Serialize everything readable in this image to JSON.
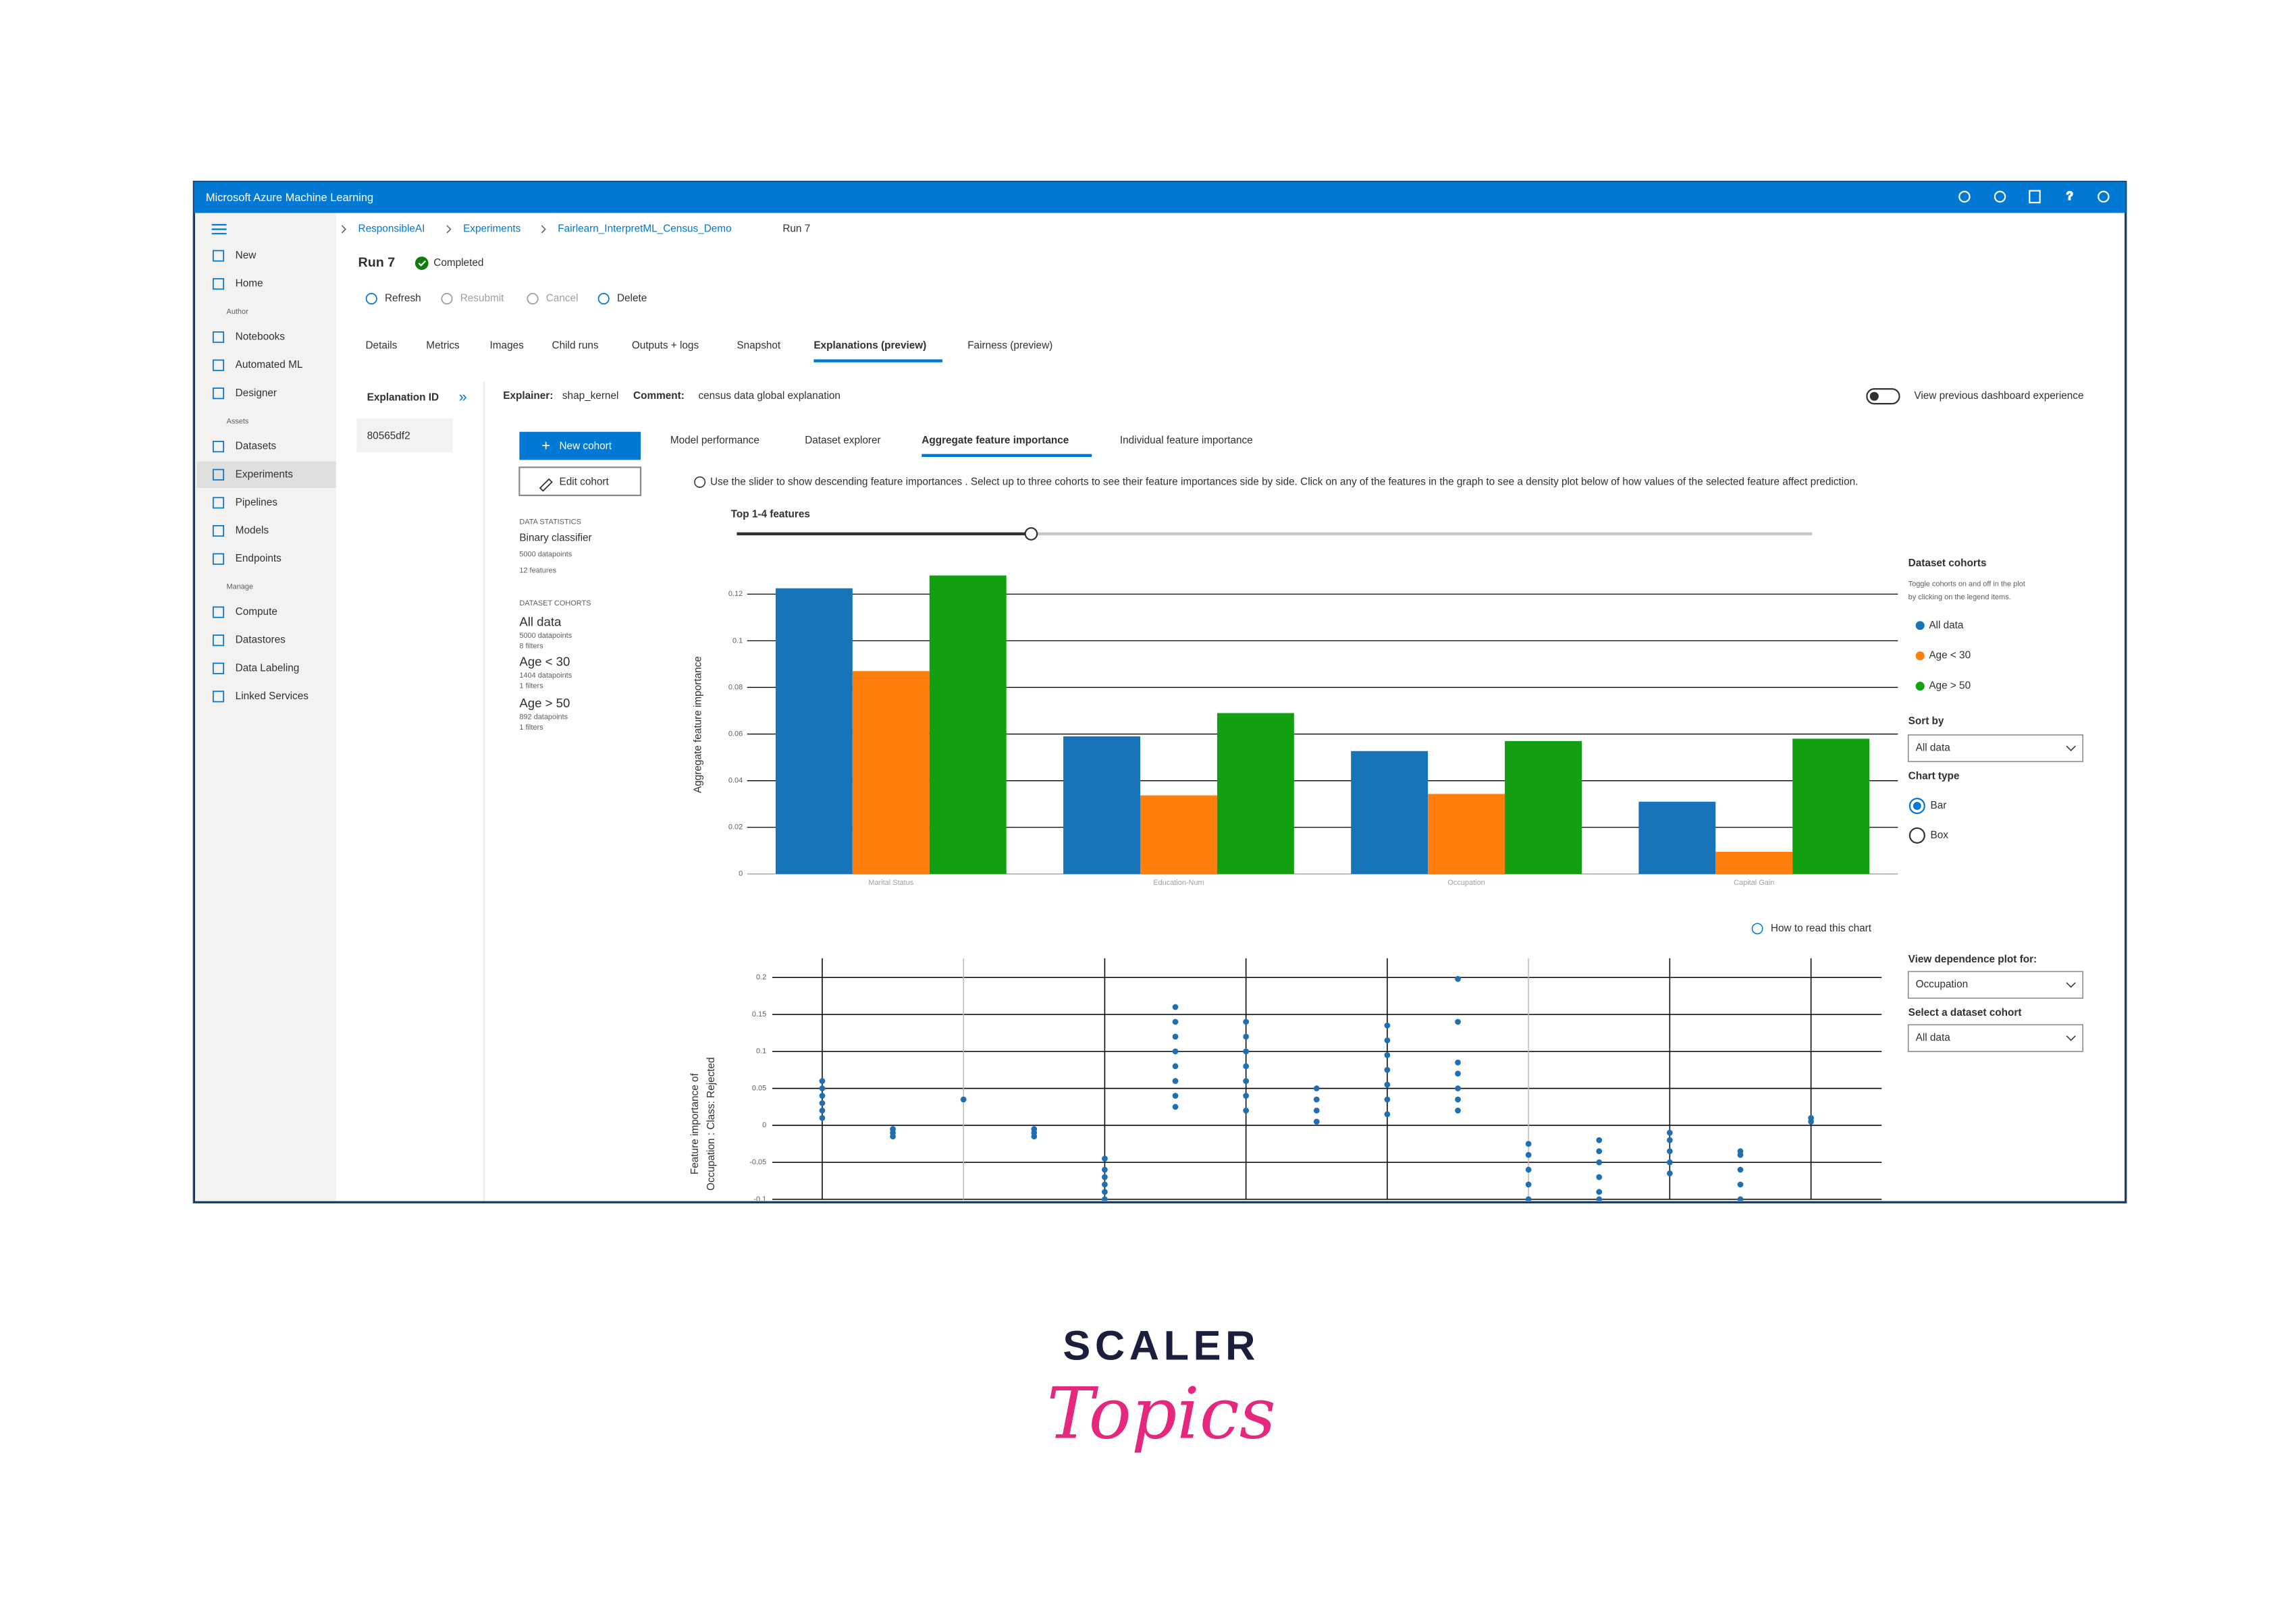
{
  "app_title": "Microsoft Azure Machine Learning",
  "sidebar": {
    "top": [
      "New",
      "Home"
    ],
    "sections": [
      {
        "label": "Author",
        "items": [
          "Notebooks",
          "Automated ML",
          "Designer"
        ]
      },
      {
        "label": "Assets",
        "items": [
          "Datasets",
          "Experiments",
          "Pipelines",
          "Models",
          "Endpoints"
        ]
      },
      {
        "label": "Manage",
        "items": [
          "Compute",
          "Datastores",
          "Data Labeling",
          "Linked Services"
        ]
      }
    ]
  },
  "breadcrumb": [
    "ResponsibleAI",
    "Experiments",
    "Fairlearn_InterpretML_Census_Demo",
    "Run 7"
  ],
  "run": {
    "title": "Run 7",
    "status": "Completed"
  },
  "toolbar": [
    "Refresh",
    "Resubmit",
    "Cancel",
    "Delete"
  ],
  "tabs": [
    "Details",
    "Metrics",
    "Images",
    "Child runs",
    "Outputs + logs",
    "Snapshot",
    "Explanations (preview)",
    "Fairness (preview)"
  ],
  "explanation": {
    "id_label": "Explanation ID",
    "id": "80565df2",
    "explainer_label": "Explainer:",
    "explainer": "shap_kernel",
    "comment_label": "Comment:",
    "comment": "census data global explanation",
    "toggle_label": "View previous dashboard experience"
  },
  "buttons": [
    "New cohort",
    "Edit cohort"
  ],
  "subtabs": [
    "Model performance",
    "Dataset explorer",
    "Aggregate feature importance",
    "Individual feature importance"
  ],
  "info": "Use the slider to show descending feature importances . Select up to three cohorts to see their feature importances side by side. Click on any of the features in the graph to see a density plot below of how values of the selected feature affect prediction.",
  "slider_label": "Top 1-4 features",
  "data_statistics": {
    "heading": "DATA STATISTICS",
    "lines": [
      "Binary classifier",
      "5000 datapoints",
      "12 features"
    ]
  },
  "dataset_cohorts": {
    "heading": "DATASET COHORTS",
    "cohorts": [
      {
        "name": "All data",
        "lines": [
          "5000 datapoints",
          "8 filters"
        ]
      },
      {
        "name": "Age < 30",
        "lines": [
          "1404 datapoints",
          "1 filters"
        ]
      },
      {
        "name": "Age > 50",
        "lines": [
          "892 datapoints",
          "1 filters"
        ]
      }
    ]
  },
  "controls": {
    "sort_by": "Sort by",
    "sort_value": "All data",
    "chart_type": "Chart type",
    "options": [
      "Bar",
      "Box"
    ],
    "how_to": "How to read this chart",
    "dependence_label": "View dependence plot for:",
    "dependence_value": "Occupation",
    "cohort_label": "Select a dataset cohort",
    "cohort_value": "All data"
  },
  "logo": {
    "line1": "SCALER",
    "line2": "Topics"
  },
  "chart_data": [
    {
      "type": "bar",
      "y_label": "Aggregate feature importance",
      "legend_title": "Dataset cohorts",
      "legend_note": [
        "Toggle cohorts on and off in the plot",
        "by clicking on the legend items."
      ],
      "categories": [
        "Marital Status",
        "Education-Num",
        "Occupation",
        "Capital Gain"
      ],
      "series": [
        {
          "name": "All data",
          "color": "#1874b8",
          "values": [
            0.1225,
            0.059,
            0.0527,
            0.031
          ]
        },
        {
          "name": "Age < 30",
          "color": "#ff7f0e",
          "values": [
            0.087,
            0.0337,
            0.0343,
            0.0095
          ]
        },
        {
          "name": "Age > 50",
          "color": "#12a012",
          "values": [
            0.128,
            0.069,
            0.057,
            0.058
          ]
        }
      ],
      "ylim": [
        0,
        0.13
      ],
      "yticks": [
        0,
        0.02,
        0.04,
        0.06,
        0.08,
        0.1,
        0.12
      ],
      "grid": true
    },
    {
      "type": "scatter",
      "y_label": [
        "Feature importance of",
        "Occupation : Class: Rejected"
      ],
      "color": "#1f6fb2",
      "x": [
        0,
        0,
        0,
        0,
        0,
        0,
        1,
        1,
        1,
        2,
        3,
        3,
        3,
        4,
        4,
        4,
        4,
        4,
        4,
        5,
        5,
        5,
        5,
        5,
        5,
        5,
        5,
        6,
        6,
        6,
        6,
        6,
        6,
        6,
        7,
        7,
        7,
        7,
        8,
        8,
        8,
        8,
        8,
        8,
        8,
        9,
        9,
        9,
        9,
        9,
        9,
        9,
        10,
        10,
        10,
        10,
        10,
        11,
        11,
        11,
        11,
        11,
        11,
        12,
        12,
        12,
        12,
        12,
        13,
        13,
        13,
        13,
        13,
        14,
        14
      ],
      "y": [
        0.01,
        0.02,
        0.03,
        0.04,
        0.05,
        0.06,
        -0.015,
        -0.01,
        -0.005,
        0.035,
        -0.015,
        -0.01,
        -0.005,
        -0.1,
        -0.09,
        -0.08,
        -0.07,
        -0.06,
        -0.045,
        0.025,
        0.04,
        0.06,
        0.08,
        0.1,
        0.12,
        0.14,
        0.16,
        0.02,
        0.04,
        0.06,
        0.08,
        0.1,
        0.12,
        0.14,
        0.005,
        0.02,
        0.035,
        0.05,
        0.015,
        0.035,
        0.055,
        0.075,
        0.095,
        0.115,
        0.135,
        0.02,
        0.035,
        0.05,
        0.07,
        0.085,
        0.14,
        0.198,
        -0.1,
        -0.08,
        -0.06,
        -0.04,
        -0.025,
        -0.1,
        -0.09,
        -0.07,
        -0.05,
        -0.035,
        -0.02,
        -0.065,
        -0.05,
        -0.035,
        -0.02,
        -0.01,
        -0.1,
        -0.08,
        -0.06,
        -0.04,
        -0.035,
        0.005,
        0.01
      ],
      "xlim": [
        -1,
        15
      ],
      "xticks": [
        0,
        2,
        4,
        6,
        8,
        10,
        12,
        14
      ],
      "ylim": [
        -0.1,
        0.2
      ],
      "yticks": [
        -0.1,
        -0.05,
        0,
        0.05,
        0.1,
        0.15,
        0.2
      ],
      "grid": true
    }
  ]
}
